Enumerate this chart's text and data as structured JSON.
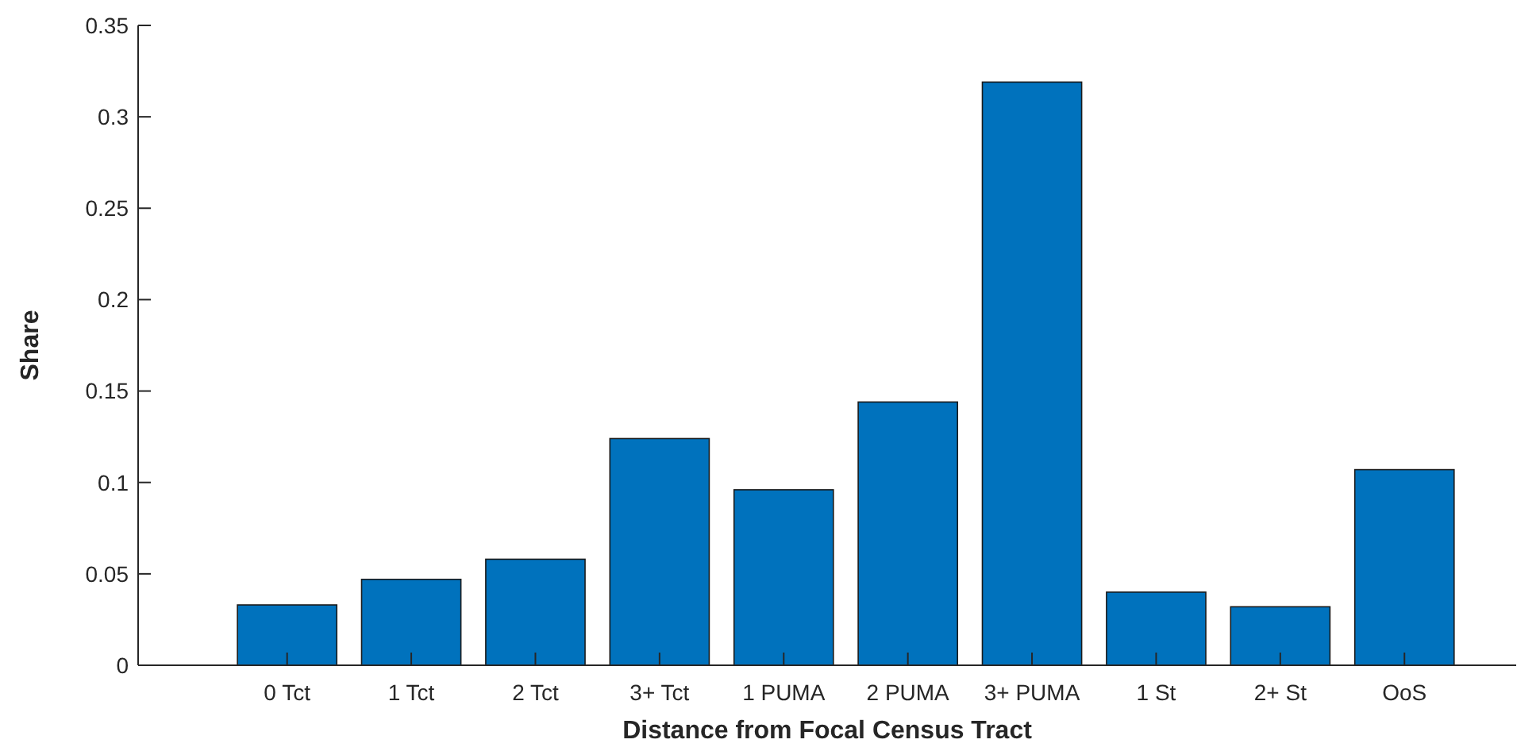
{
  "chart_data": {
    "type": "bar",
    "xlabel": "Distance from Focal Census Tract",
    "ylabel": "Share",
    "categories": [
      "0 Tct",
      "1 Tct",
      "2 Tct",
      "3+ Tct",
      "1 PUMA",
      "2 PUMA",
      "3+ PUMA",
      "1 St",
      "2+ St",
      "OoS"
    ],
    "values": [
      0.033,
      0.047,
      0.058,
      0.124,
      0.096,
      0.144,
      0.319,
      0.04,
      0.032,
      0.107
    ],
    "color": "#0072bd",
    "ylim": [
      0,
      0.35
    ],
    "yticks": [
      0,
      0.05,
      0.1,
      0.15,
      0.2,
      0.25,
      0.3,
      0.35
    ],
    "grid": false
  }
}
